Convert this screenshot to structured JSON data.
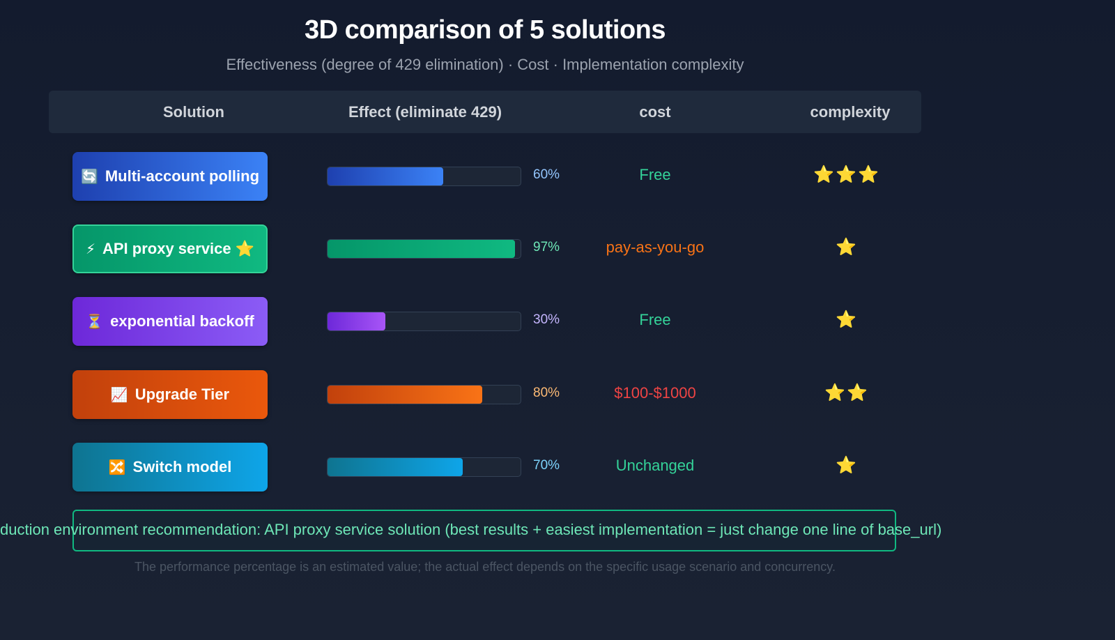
{
  "title": "3D comparison of 5 solutions",
  "subtitle": "Effectiveness (degree of 429 elimination) · Cost · Implementation complexity",
  "table": {
    "headers": {
      "solution": "Solution",
      "effect": "Effect (eliminate 429)",
      "cost": "cost",
      "complexity": "complexity"
    }
  },
  "rows": [
    {
      "label": "Multi-account polling",
      "glyph": "🔄",
      "icon": "refresh-icon",
      "effect": 0.6,
      "effect_label": "60%",
      "cost": "Free",
      "cost_color": "#34d399",
      "complexity": "⭐⭐⭐",
      "complexity_stars": 3,
      "btn_gradient": [
        "#1e40af",
        "#3b82f6"
      ],
      "bar_gradient": [
        "#1e40af",
        "#3b82f6"
      ],
      "pct_color": "#93c5fd",
      "highlight": false,
      "star_mark": ""
    },
    {
      "label": "API proxy service",
      "glyph": "⚡",
      "icon": "lightning-icon",
      "effect": 0.97,
      "effect_label": "97%",
      "cost": "pay-as-you-go",
      "cost_color": "#f97316",
      "complexity": "⭐",
      "complexity_stars": 1,
      "btn_gradient": [
        "#059669",
        "#10b981"
      ],
      "bar_gradient": [
        "#059669",
        "#10b981"
      ],
      "pct_color": "#6ee7b7",
      "highlight": true,
      "star_mark": "⭐"
    },
    {
      "label": "exponential backoff",
      "glyph": "⏳",
      "icon": "hourglass-icon",
      "effect": 0.3,
      "effect_label": "30%",
      "cost": "Free",
      "cost_color": "#34d399",
      "complexity": "⭐",
      "complexity_stars": 1,
      "btn_gradient": [
        "#6d28d9",
        "#8b5cf6"
      ],
      "bar_gradient": [
        "#6d28d9",
        "#a855f7"
      ],
      "pct_color": "#c4b5fd",
      "highlight": false,
      "star_mark": ""
    },
    {
      "label": "Upgrade Tier",
      "glyph": "📈",
      "icon": "chart-up-icon",
      "effect": 0.8,
      "effect_label": "80%",
      "cost": "$100-$1000",
      "cost_color": "#ef4444",
      "complexity": "⭐⭐",
      "complexity_stars": 2,
      "btn_gradient": [
        "#c2410c",
        "#ea580c"
      ],
      "bar_gradient": [
        "#c2410c",
        "#f97316"
      ],
      "pct_color": "#fdba74",
      "highlight": false,
      "star_mark": ""
    },
    {
      "label": "Switch model",
      "glyph": "🔀",
      "icon": "shuffle-icon",
      "effect": 0.7,
      "effect_label": "70%",
      "cost": "Unchanged",
      "cost_color": "#34d399",
      "complexity": "⭐",
      "complexity_stars": 1,
      "btn_gradient": [
        "#0e7490",
        "#0ea5e9"
      ],
      "bar_gradient": [
        "#0e7490",
        "#0ea5e9"
      ],
      "pct_color": "#7dd3fc",
      "highlight": false,
      "star_mark": ""
    }
  ],
  "recommendation": "duction environment recommendation: API proxy service solution (best results + easiest implementation = just change one line of base_url)",
  "footnote": "The performance percentage is an estimated value; the actual effect depends on the specific usage scenario and concurrency.",
  "chart_data": {
    "type": "bar",
    "categories": [
      "Multi-account polling",
      "API proxy service",
      "exponential backoff",
      "Upgrade Tier",
      "Switch model"
    ],
    "values": [
      60,
      97,
      30,
      80,
      70
    ],
    "unit": "%",
    "xlim": [
      0,
      100
    ],
    "orientation": "horizontal",
    "title": "3D comparison of 5 solutions",
    "xlabel": "Effect (eliminate 429)",
    "ylabel": "Solution"
  }
}
